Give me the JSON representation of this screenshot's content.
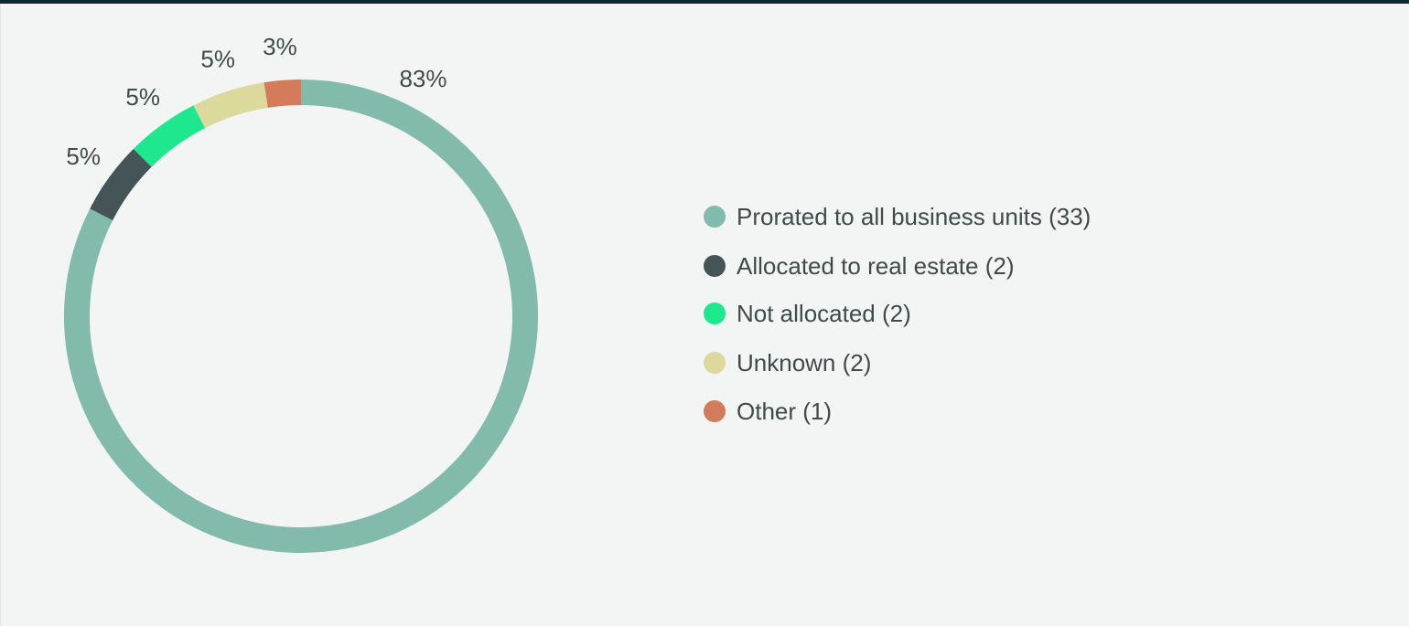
{
  "chart_data": {
    "type": "pie",
    "variant": "donut",
    "categories": [
      "Prorated to all business units (33)",
      "Allocated to real estate (2)",
      "Not allocated (2)",
      "Unknown (2)",
      "Other (1)"
    ],
    "values": [
      33,
      2,
      2,
      2,
      1
    ],
    "percent_labels": [
      "83%",
      "5%",
      "5%",
      "5%",
      "3%"
    ],
    "colors": [
      "#82bbab",
      "#445457",
      "#1de88e",
      "#dcd99c",
      "#d37b5a"
    ],
    "legend_position": "right",
    "title": ""
  }
}
